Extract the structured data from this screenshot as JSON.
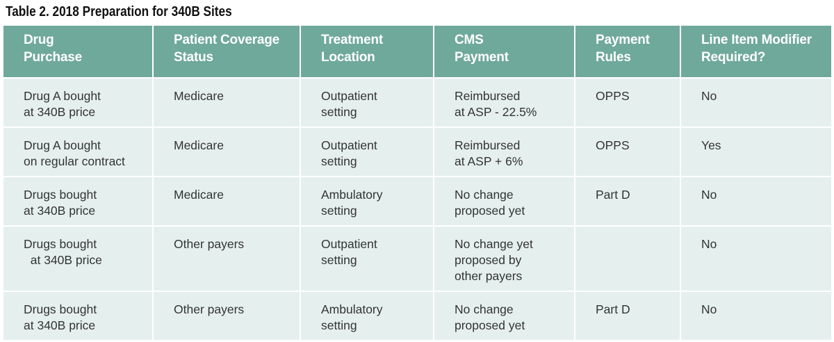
{
  "title": "Table 2. 2018 Preparation for 340B Sites",
  "headers": [
    "Drug\nPurchase",
    "Patient Coverage\nStatus",
    "Treatment\nLocation",
    "CMS\nPayment",
    "Payment\nRules",
    "Line Item Modifier\nRequired?"
  ],
  "rows": [
    [
      "Drug A bought\nat 340B price",
      "Medicare",
      "Outpatient\nsetting",
      "Reimbursed\nat ASP - 22.5%",
      "OPPS",
      "No"
    ],
    [
      "Drug A bought\non regular contract",
      "Medicare",
      "Outpatient\nsetting",
      "Reimbursed\nat ASP + 6%",
      "OPPS",
      "Yes"
    ],
    [
      "Drugs bought\nat 340B price",
      "Medicare",
      "Ambulatory\nsetting",
      "No change\nproposed yet",
      "Part D",
      "No"
    ],
    [
      "Drugs bought\n  at 340B price",
      "Other payers",
      "Outpatient\nsetting",
      "No change yet\nproposed by\nother payers",
      "",
      "No"
    ],
    [
      "Drugs bought\nat 340B price",
      "Other payers",
      "Ambulatory\nsetting",
      "No change\nproposed yet",
      "Part D",
      "No"
    ]
  ],
  "colors": {
    "header_bg": "#6fa99b",
    "cell_bg": "#e5f0ee",
    "header_text": "#ffffff",
    "cell_text": "#333333"
  }
}
